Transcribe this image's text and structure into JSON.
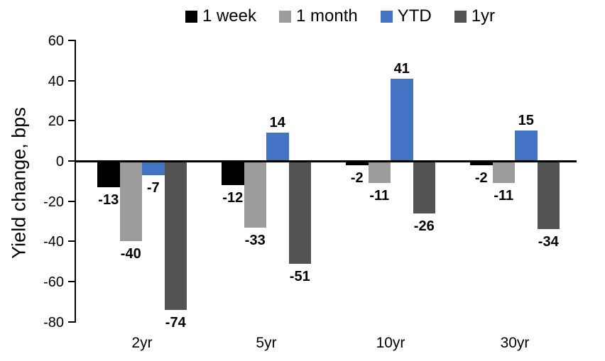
{
  "chart_data": {
    "type": "bar",
    "title": "",
    "xlabel": "",
    "ylabel": "Yield change, bps",
    "categories": [
      "2yr",
      "5yr",
      "10yr",
      "30yr"
    ],
    "series": [
      {
        "name": "1 week",
        "color": "#000000",
        "values": [
          -13,
          -12,
          -2,
          -2
        ]
      },
      {
        "name": "1 month",
        "color": "#9C9C9C",
        "values": [
          -40,
          -33,
          -11,
          -11
        ]
      },
      {
        "name": "YTD",
        "color": "#4472C4",
        "values": [
          -7,
          14,
          41,
          15
        ]
      },
      {
        "name": "1yr",
        "color": "#535353",
        "values": [
          -74,
          -51,
          -26,
          -34
        ]
      }
    ],
    "y_axis": {
      "min": -80,
      "max": 60,
      "ticks": [
        60,
        40,
        20,
        0,
        -20,
        -40,
        -60,
        -80
      ]
    },
    "legend_position": "top",
    "grid": false,
    "data_labels": true,
    "axis_color": "#000000"
  }
}
